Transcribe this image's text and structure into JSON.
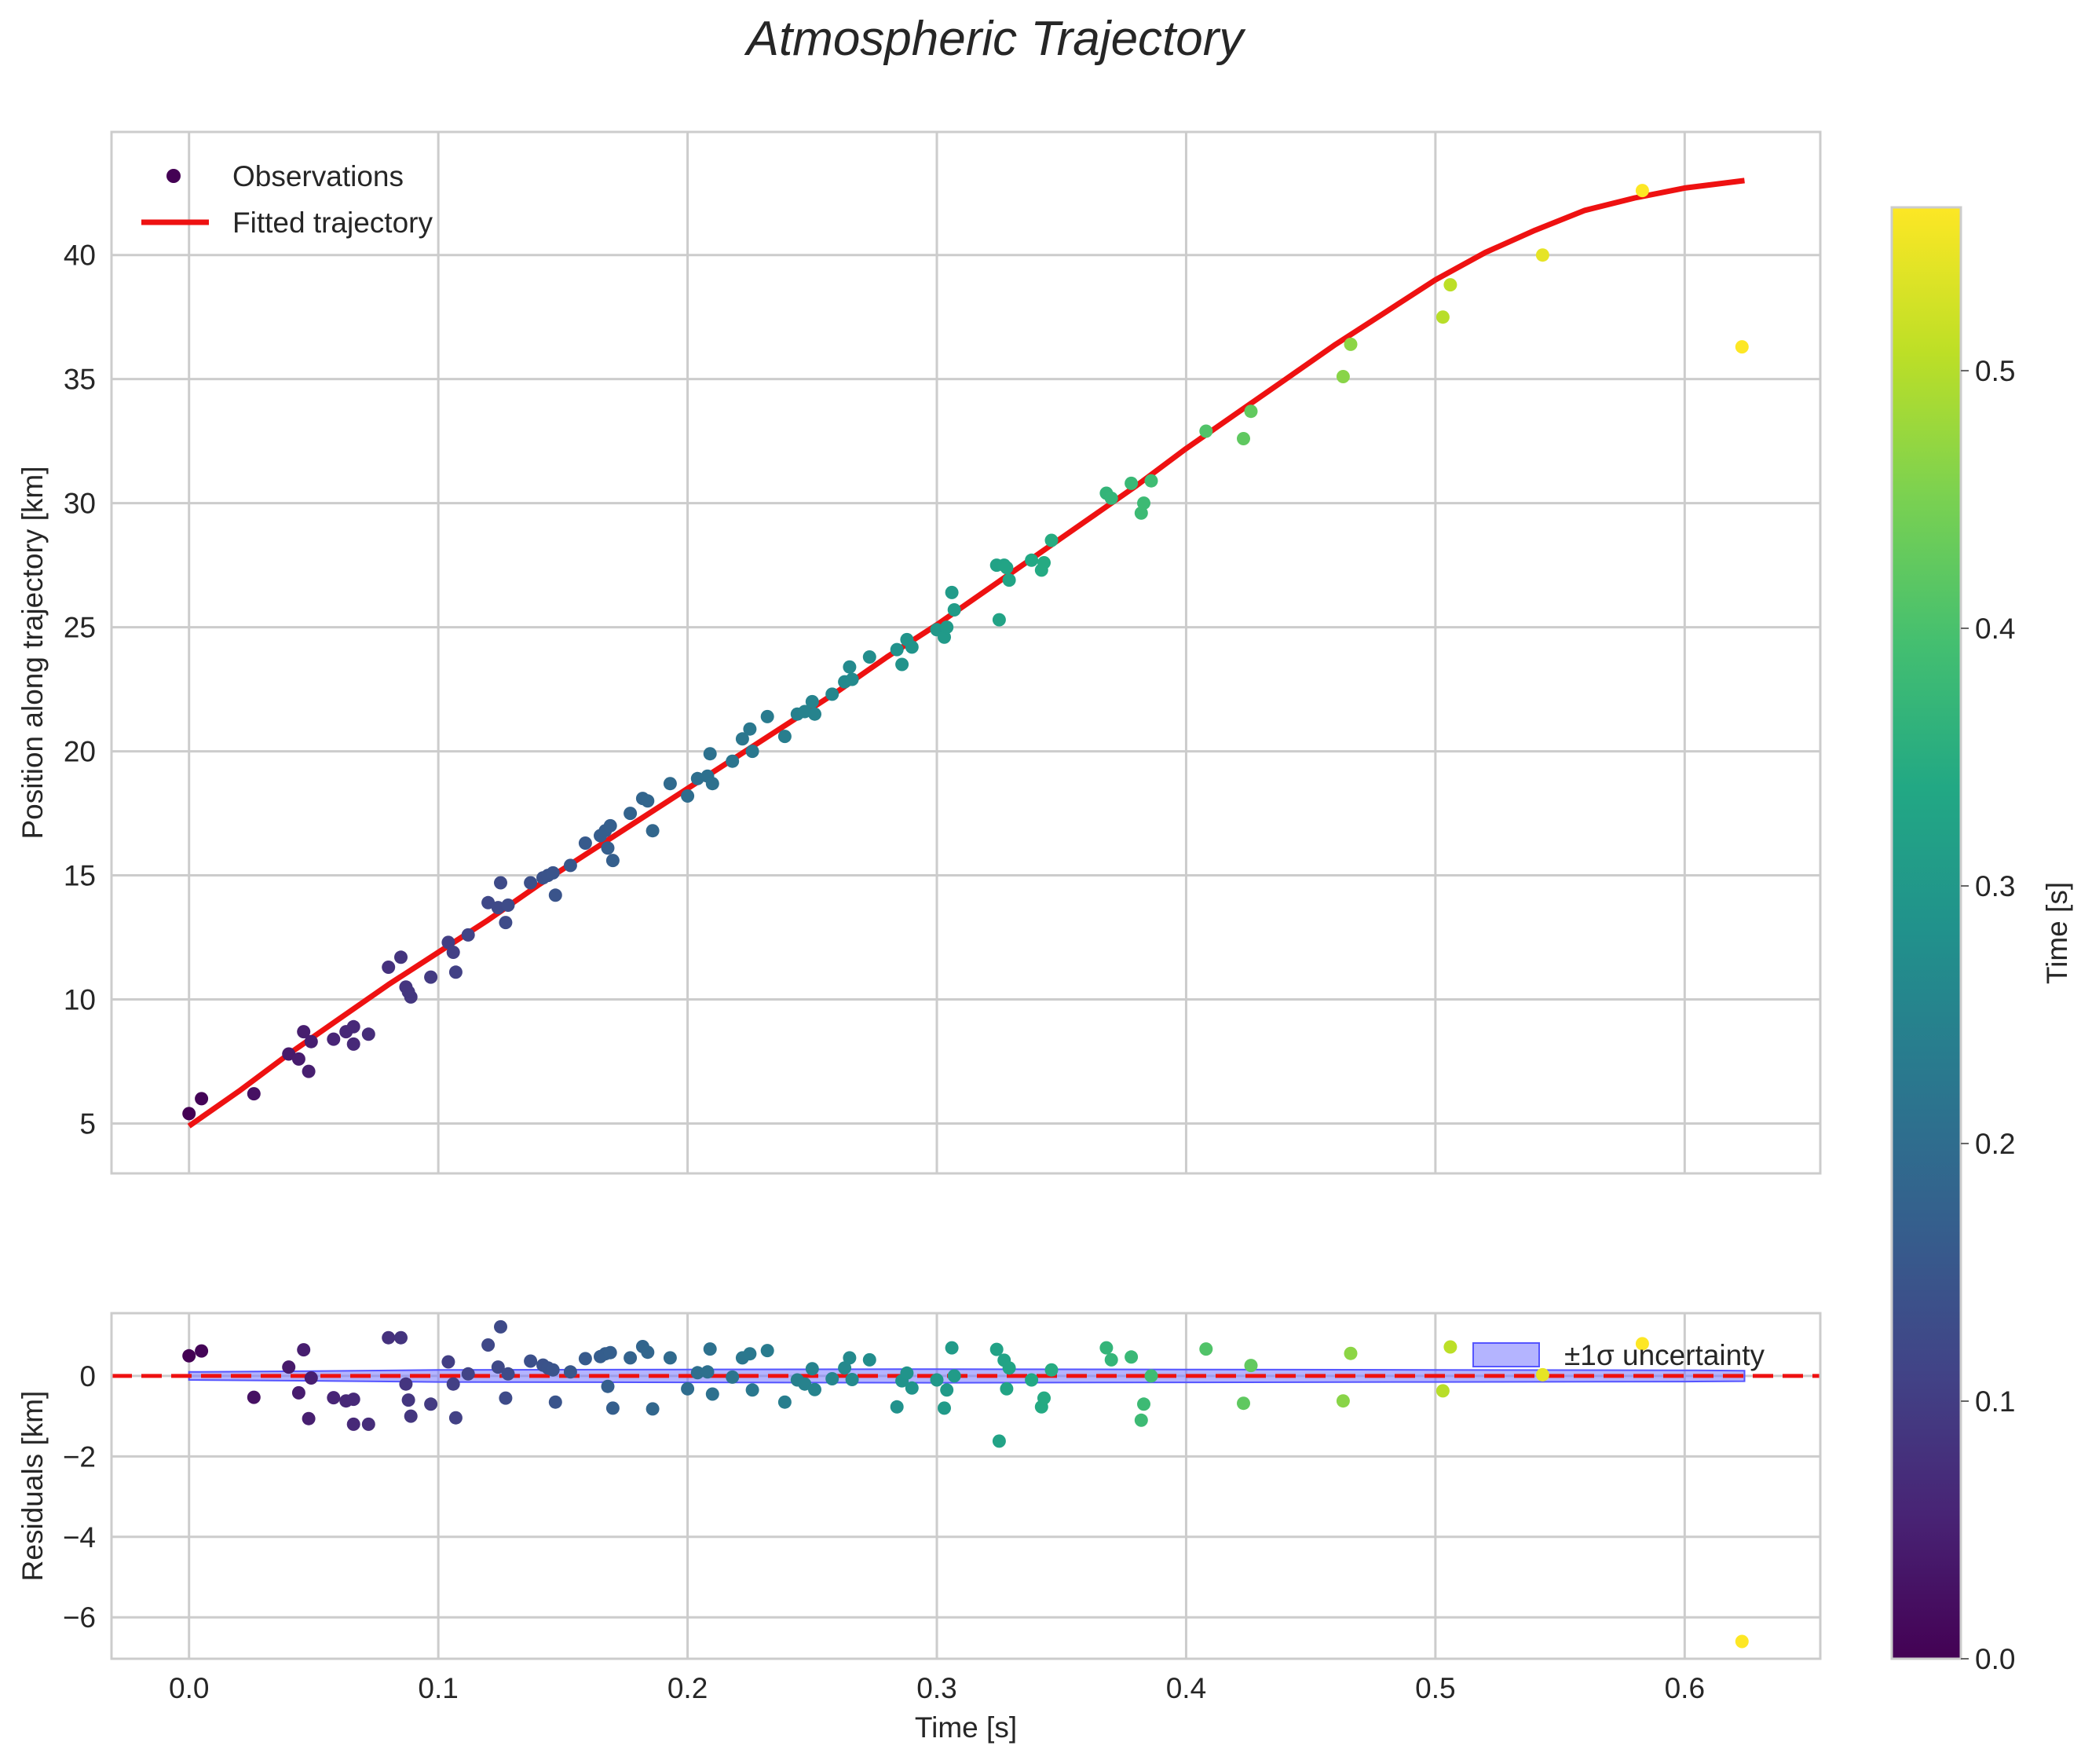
{
  "chart_data": {
    "title": "Atmospheric Trajectory",
    "top": {
      "type": "scatter",
      "ylabel": "Position along trajectory [km]",
      "xlim": [
        -0.0311,
        0.6544
      ],
      "ylim": [
        2.99,
        44.96
      ],
      "xticks": [
        0.0,
        0.1,
        0.2,
        0.3,
        0.4,
        0.5,
        0.6
      ],
      "yticks": [
        5,
        10,
        15,
        20,
        25,
        30,
        35,
        40
      ],
      "ytick_labels": [
        "5",
        "10",
        "15",
        "20",
        "25",
        "30",
        "35",
        "40"
      ],
      "legend": {
        "position": "top-left",
        "entries": [
          "Observations",
          "Fitted trajectory"
        ]
      },
      "fit_line": {
        "name": "Fitted trajectory",
        "color": "#ee1111",
        "x": [
          0.0,
          0.02,
          0.04,
          0.06,
          0.08,
          0.1,
          0.12,
          0.14,
          0.16,
          0.18,
          0.2,
          0.22,
          0.24,
          0.26,
          0.28,
          0.3,
          0.32,
          0.34,
          0.36,
          0.38,
          0.4,
          0.42,
          0.44,
          0.46,
          0.48,
          0.5,
          0.52,
          0.54,
          0.56,
          0.58,
          0.6,
          0.624
        ],
        "y": [
          4.9,
          6.3,
          7.8,
          9.2,
          10.6,
          11.9,
          13.2,
          14.6,
          15.9,
          17.2,
          18.5,
          19.8,
          21.1,
          22.4,
          23.8,
          25.1,
          26.5,
          27.9,
          29.3,
          30.7,
          32.2,
          33.6,
          35.0,
          36.4,
          37.7,
          39.0,
          40.1,
          41.0,
          41.8,
          42.3,
          42.7,
          43.0
        ]
      },
      "points": {
        "name": "Observations",
        "colormap": "viridis",
        "x": [
          0.0,
          0.005,
          0.026,
          0.04,
          0.044,
          0.046,
          0.048,
          0.049,
          0.058,
          0.063,
          0.066,
          0.066,
          0.072,
          0.08,
          0.085,
          0.087,
          0.088,
          0.089,
          0.097,
          0.104,
          0.106,
          0.107,
          0.112,
          0.12,
          0.124,
          0.125,
          0.127,
          0.128,
          0.137,
          0.142,
          0.144,
          0.146,
          0.147,
          0.153,
          0.159,
          0.165,
          0.167,
          0.168,
          0.169,
          0.17,
          0.177,
          0.182,
          0.184,
          0.186,
          0.193,
          0.2,
          0.204,
          0.208,
          0.209,
          0.21,
          0.218,
          0.222,
          0.225,
          0.226,
          0.232,
          0.239,
          0.244,
          0.247,
          0.25,
          0.251,
          0.258,
          0.263,
          0.265,
          0.266,
          0.273,
          0.284,
          0.286,
          0.288,
          0.29,
          0.3,
          0.303,
          0.304,
          0.306,
          0.307,
          0.324,
          0.325,
          0.327,
          0.328,
          0.329,
          0.338,
          0.342,
          0.343,
          0.346,
          0.368,
          0.37,
          0.378,
          0.382,
          0.383,
          0.386,
          0.408,
          0.423,
          0.426,
          0.463,
          0.466,
          0.503,
          0.506,
          0.543,
          0.583,
          0.623
        ],
        "y": [
          5.4,
          6.0,
          6.2,
          7.8,
          7.6,
          8.7,
          7.1,
          8.3,
          8.4,
          8.7,
          8.9,
          8.2,
          8.6,
          11.3,
          11.7,
          10.5,
          10.3,
          10.1,
          10.9,
          12.3,
          11.9,
          11.1,
          12.6,
          13.9,
          13.7,
          14.7,
          13.1,
          13.8,
          14.7,
          14.9,
          15.0,
          15.1,
          14.2,
          15.4,
          16.3,
          16.6,
          16.8,
          16.1,
          17.0,
          15.6,
          17.5,
          18.1,
          18.0,
          16.8,
          18.7,
          18.2,
          18.9,
          19.0,
          19.9,
          18.7,
          19.6,
          20.5,
          20.9,
          20.0,
          21.4,
          20.6,
          21.5,
          21.6,
          22.0,
          21.5,
          22.3,
          22.8,
          23.4,
          22.9,
          23.8,
          24.1,
          23.5,
          24.5,
          24.2,
          24.9,
          24.6,
          25.0,
          26.4,
          25.7,
          27.5,
          25.3,
          27.5,
          27.4,
          26.9,
          27.7,
          27.3,
          27.6,
          28.5,
          30.4,
          30.2,
          30.8,
          29.6,
          30.0,
          30.9,
          32.9,
          32.6,
          33.7,
          35.1,
          36.4,
          37.5,
          38.8,
          40.0,
          42.6,
          36.3
        ]
      }
    },
    "bottom": {
      "type": "scatter",
      "xlabel": "Time [s]",
      "ylabel": "Residuals [km]",
      "xlim": [
        -0.0311,
        0.6544
      ],
      "ylim": [
        -7.03,
        1.56
      ],
      "xticks": [
        0.0,
        0.1,
        0.2,
        0.3,
        0.4,
        0.5,
        0.6
      ],
      "xtick_labels": [
        "0.0",
        "0.1",
        "0.2",
        "0.3",
        "0.4",
        "0.5",
        "0.6"
      ],
      "yticks": [
        0,
        -2,
        -4,
        -6
      ],
      "ytick_labels": [
        "0",
        "−2",
        "−4",
        "−6"
      ],
      "zero_line": {
        "y": 0,
        "style": "dashed",
        "color": "#ee1111"
      },
      "band": {
        "label": "±1σ uncertainty",
        "color": "#7777ff",
        "x": [
          0.0,
          0.05,
          0.1,
          0.2,
          0.3,
          0.4,
          0.5,
          0.6,
          0.624
        ],
        "halfwidth": [
          0.1,
          0.12,
          0.15,
          0.16,
          0.17,
          0.16,
          0.15,
          0.14,
          0.13
        ]
      },
      "legend": {
        "position": "top-right",
        "entries": [
          "±1σ uncertainty"
        ]
      },
      "residuals": [
        0.5,
        0.62,
        -0.53,
        0.22,
        -0.42,
        0.65,
        -1.06,
        -0.05,
        -0.54,
        -0.62,
        -0.58,
        -1.2,
        -1.2,
        0.95,
        0.95,
        -0.2,
        -0.6,
        -1.0,
        -0.7,
        0.35,
        -0.2,
        -1.04,
        0.05,
        0.77,
        0.22,
        1.22,
        -0.55,
        0.05,
        0.37,
        0.27,
        0.2,
        0.15,
        -0.65,
        0.1,
        0.43,
        0.48,
        0.55,
        -0.26,
        0.58,
        -0.8,
        0.45,
        0.73,
        0.59,
        -0.82,
        0.45,
        -0.32,
        0.08,
        0.1,
        0.67,
        -0.45,
        -0.03,
        0.45,
        0.55,
        -0.35,
        0.63,
        -0.65,
        -0.1,
        -0.2,
        0.18,
        -0.34,
        -0.07,
        0.2,
        0.45,
        -0.09,
        0.4,
        -0.77,
        -0.12,
        0.07,
        -0.3,
        -0.1,
        -0.8,
        -0.35,
        0.7,
        0.0,
        0.66,
        -1.62,
        0.39,
        -0.32,
        0.2,
        -0.1,
        -0.77,
        -0.55,
        0.15,
        0.7,
        0.4,
        0.47,
        -1.1,
        -0.7,
        0.0,
        0.67,
        -0.68,
        0.26,
        -0.62,
        0.56,
        -0.37,
        0.72,
        0.03,
        0.8,
        -6.6
      ]
    },
    "colorbar": {
      "label": "Time [s]",
      "colormap": "viridis",
      "range": [
        0.0,
        0.5634
      ],
      "ticks": [
        0.0,
        0.1,
        0.2,
        0.3,
        0.4,
        0.5
      ],
      "tick_labels": [
        "0.0",
        "0.1",
        "0.2",
        "0.3",
        "0.4",
        "0.5"
      ]
    }
  }
}
